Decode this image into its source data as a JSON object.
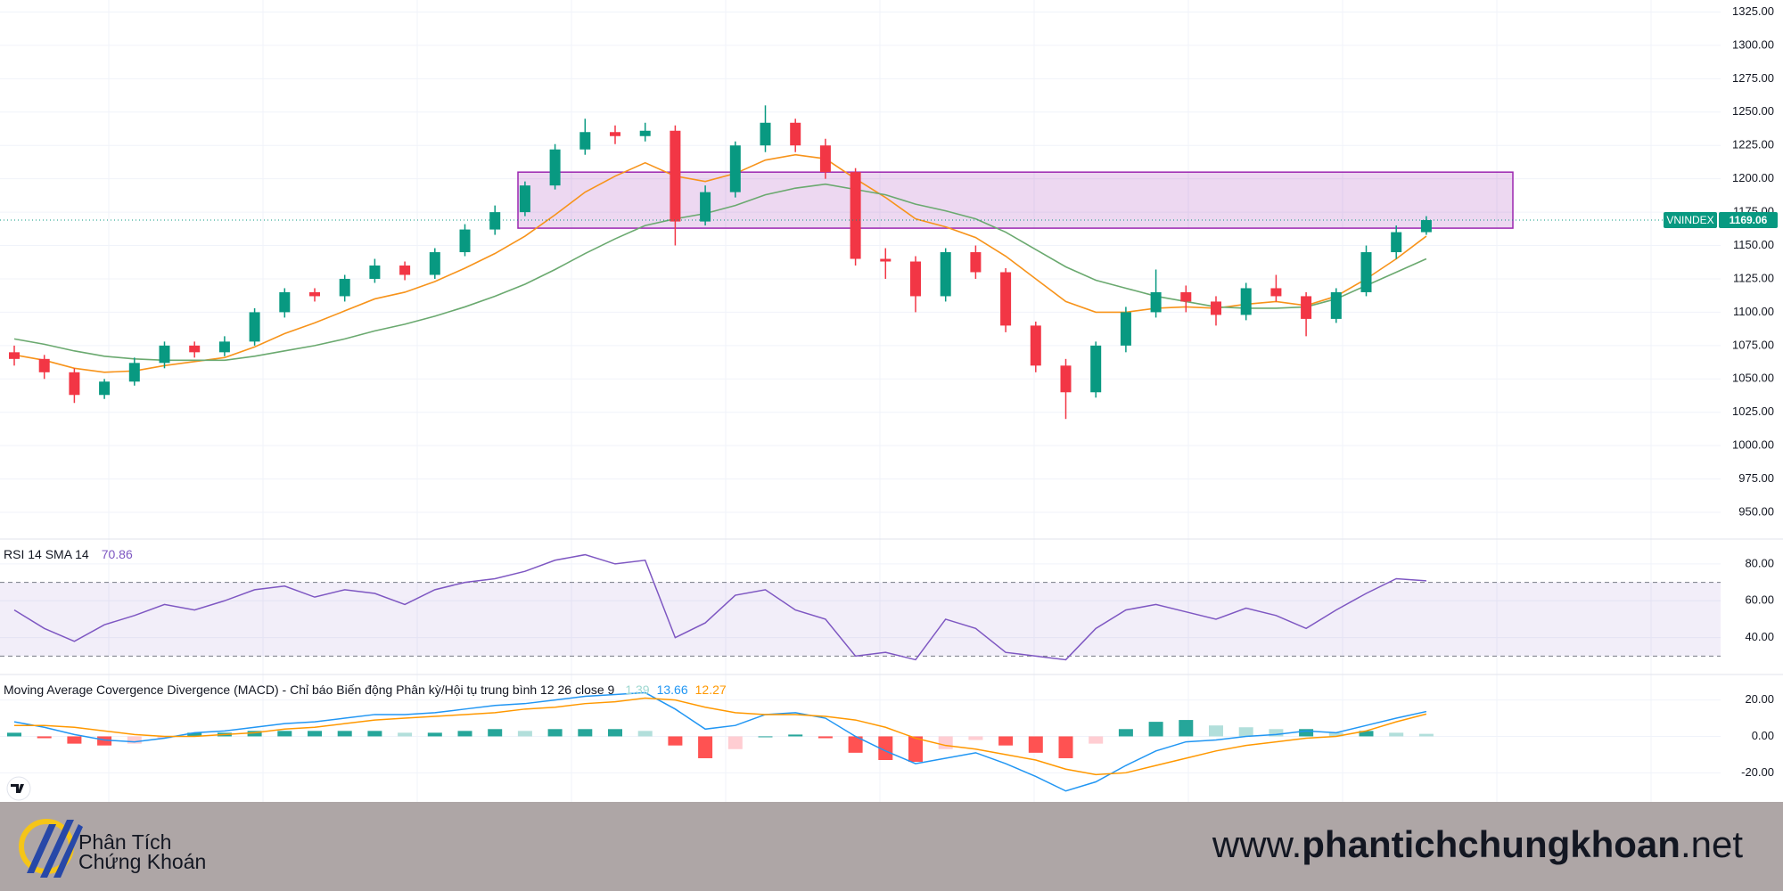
{
  "chart_data": [
    {
      "type": "candlestick",
      "symbol": "VNINDEX",
      "open": [
        1070,
        1065,
        1055,
        1038,
        1048,
        1062,
        1075,
        1070,
        1078,
        1100,
        1115,
        1112,
        1125,
        1135,
        1128,
        1145,
        1162,
        1175,
        1195,
        1222,
        1235,
        1232,
        1236,
        1168,
        1190,
        1225,
        1242,
        1225,
        1205,
        1140,
        1138,
        1112,
        1145,
        1130,
        1090,
        1060,
        1040,
        1075,
        1100,
        1115,
        1108,
        1098,
        1118,
        1112,
        1095,
        1115,
        1145,
        1160
      ],
      "high": [
        1075,
        1068,
        1058,
        1050,
        1066,
        1078,
        1078,
        1082,
        1103,
        1118,
        1118,
        1128,
        1140,
        1138,
        1148,
        1166,
        1180,
        1198,
        1226,
        1245,
        1240,
        1242,
        1240,
        1195,
        1228,
        1255,
        1245,
        1230,
        1208,
        1148,
        1142,
        1148,
        1150,
        1133,
        1093,
        1065,
        1078,
        1104,
        1132,
        1120,
        1112,
        1122,
        1128,
        1115,
        1118,
        1150,
        1165,
        1172
      ],
      "low": [
        1060,
        1050,
        1032,
        1035,
        1045,
        1058,
        1066,
        1067,
        1075,
        1096,
        1108,
        1108,
        1122,
        1124,
        1125,
        1142,
        1158,
        1172,
        1192,
        1218,
        1226,
        1228,
        1150,
        1165,
        1186,
        1220,
        1220,
        1200,
        1135,
        1125,
        1100,
        1108,
        1125,
        1085,
        1055,
        1020,
        1036,
        1070,
        1096,
        1100,
        1090,
        1094,
        1108,
        1082,
        1092,
        1112,
        1140,
        1158
      ],
      "close": [
        1065,
        1055,
        1038,
        1048,
        1062,
        1075,
        1070,
        1078,
        1100,
        1115,
        1112,
        1125,
        1135,
        1128,
        1145,
        1162,
        1175,
        1195,
        1222,
        1235,
        1232,
        1236,
        1168,
        1190,
        1225,
        1242,
        1225,
        1205,
        1140,
        1138,
        1112,
        1145,
        1130,
        1090,
        1060,
        1040,
        1075,
        1100,
        1115,
        1108,
        1098,
        1118,
        1112,
        1095,
        1115,
        1145,
        1160,
        1169.06
      ],
      "colors": {
        "up": "#089981",
        "down": "#f23645"
      },
      "moving_averages": [
        {
          "color": "#f7931a",
          "values": [
            1068,
            1064,
            1058,
            1055,
            1056,
            1060,
            1063,
            1066,
            1074,
            1084,
            1092,
            1101,
            1110,
            1115,
            1123,
            1133,
            1144,
            1157,
            1173,
            1190,
            1202,
            1212,
            1202,
            1198,
            1204,
            1214,
            1218,
            1215,
            1200,
            1186,
            1170,
            1164,
            1156,
            1142,
            1125,
            1108,
            1100,
            1100,
            1103,
            1104,
            1103,
            1106,
            1108,
            1105,
            1112,
            1125,
            1140,
            1157
          ]
        },
        {
          "color": "#6aa96f",
          "values": [
            1080,
            1076,
            1071,
            1067,
            1065,
            1064,
            1064,
            1064,
            1067,
            1071,
            1075,
            1080,
            1086,
            1091,
            1097,
            1104,
            1112,
            1121,
            1132,
            1144,
            1155,
            1165,
            1170,
            1174,
            1180,
            1188,
            1193,
            1196,
            1192,
            1188,
            1181,
            1176,
            1170,
            1160,
            1147,
            1134,
            1124,
            1118,
            1112,
            1108,
            1104,
            1103,
            1103,
            1104,
            1110,
            1120,
            1130,
            1140
          ]
        }
      ],
      "zone": {
        "low": 1163,
        "high": 1205,
        "color": "#9c27b0"
      },
      "ylim": [
        930,
        1334
      ],
      "yticks": [
        {
          "value": 950,
          "label": "950.00"
        },
        {
          "value": 975,
          "label": "975.00"
        },
        {
          "value": 1000,
          "label": "1000.00"
        },
        {
          "value": 1025,
          "label": "1025.00"
        },
        {
          "value": 1050,
          "label": "1050.00"
        },
        {
          "value": 1075,
          "label": "1075.00"
        },
        {
          "value": 1100,
          "label": "1100.00"
        },
        {
          "value": 1125,
          "label": "1125.00"
        },
        {
          "value": 1150,
          "label": "1150.00"
        },
        {
          "value": 1175,
          "label": "1175.00"
        },
        {
          "value": 1200,
          "label": "1200.00"
        },
        {
          "value": 1225,
          "label": "1225.00"
        },
        {
          "value": 1250,
          "label": "1250.00"
        },
        {
          "value": 1275,
          "label": "1275.00"
        },
        {
          "value": 1300,
          "label": "1300.00"
        },
        {
          "value": 1325,
          "label": "1325.00"
        }
      ],
      "grid": true
    },
    {
      "type": "line",
      "title": "RSI 14 SMA 14",
      "color": "#7e57c2",
      "values": [
        55,
        45,
        38,
        47,
        52,
        58,
        55,
        60,
        66,
        68,
        62,
        66,
        64,
        58,
        66,
        70,
        72,
        76,
        82,
        85,
        80,
        82,
        40,
        48,
        63,
        66,
        55,
        50,
        30,
        32,
        28,
        50,
        45,
        32,
        30,
        28,
        45,
        55,
        58,
        54,
        50,
        56,
        52,
        45,
        55,
        64,
        72,
        70.86
      ],
      "band": [
        30,
        70
      ],
      "ylim": [
        20,
        93.5
      ],
      "yticks": [
        {
          "value": 40,
          "label": "40.00"
        },
        {
          "value": 60,
          "label": "60.00"
        },
        {
          "value": 80,
          "label": "80.00"
        }
      ],
      "grid": true
    },
    {
      "type": "macd",
      "title": "Moving Average Covergence Divergence (MACD) - Chỉ báo Biến động Phân kỳ/Hội tụ trung bình 12 26 close 9",
      "histogram": {
        "colors": [
          "#26a69a",
          "#b2dfdb",
          "#ff5252",
          "#ffcdd2"
        ],
        "values": [
          2,
          -1,
          -4,
          -5,
          -4,
          -1,
          2,
          2,
          3,
          3,
          3,
          3,
          3,
          2,
          2,
          3,
          4,
          3,
          4,
          4,
          4,
          3,
          -5,
          -12,
          -7,
          0,
          1,
          -1,
          -9,
          -13,
          -14,
          -7,
          -2,
          -5,
          -9,
          -12,
          -4,
          4,
          8,
          9,
          6,
          5,
          4,
          4,
          2,
          3,
          2,
          1.39
        ]
      },
      "macd": {
        "color": "#2196f3",
        "values": [
          8,
          5,
          1,
          -2,
          -3,
          -1,
          2,
          3,
          5,
          7,
          8,
          10,
          12,
          12,
          13,
          15,
          17,
          18,
          20,
          22,
          23,
          24,
          15,
          4,
          6,
          12,
          13,
          10,
          0,
          -8,
          -15,
          -12,
          -9,
          -15,
          -22,
          -30,
          -25,
          -16,
          -8,
          -3,
          -2,
          0,
          1,
          3,
          2,
          6,
          10,
          13.66
        ]
      },
      "signal": {
        "color": "#ff9800",
        "values": [
          6,
          6,
          5,
          3,
          1,
          0,
          0,
          1,
          2,
          4,
          5,
          7,
          9,
          10,
          11,
          12,
          13,
          15,
          16,
          18,
          19,
          21,
          20,
          16,
          13,
          12,
          12,
          11,
          9,
          5,
          -1,
          -5,
          -7,
          -10,
          -13,
          -18,
          -21,
          -20,
          -16,
          -12,
          -8,
          -5,
          -3,
          -1,
          0,
          3,
          8,
          12.27
        ]
      },
      "ylim": [
        -36,
        34
      ],
      "yticks": [
        {
          "value": -20,
          "label": "-20.00"
        },
        {
          "value": 0,
          "label": "0.00"
        },
        {
          "value": 20,
          "label": "20.00"
        }
      ],
      "grid": true
    }
  ],
  "footer": {
    "logo": [
      "Phân Tích",
      "Chứng Khoán"
    ],
    "site": {
      "prefix": "www.",
      "name": "phantichchungkhoan",
      "suffix": ".net"
    }
  }
}
